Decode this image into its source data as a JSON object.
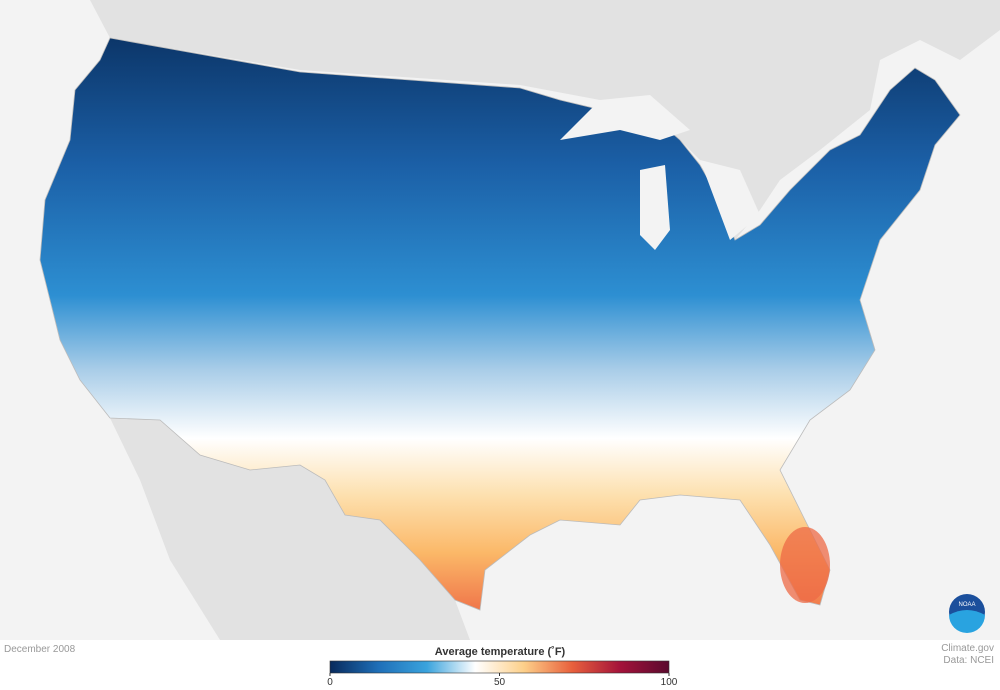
{
  "footer": {
    "date": "December 2008",
    "site": "Climate.gov",
    "source": "Data: NCEI"
  },
  "logo": "NOAA",
  "legend": {
    "title": "Average temperature (˚F)",
    "range": [
      0,
      100
    ],
    "ticks": [
      0,
      50,
      100
    ],
    "colors": [
      "#082a5c",
      "#1f6fb8",
      "#3aa3dd",
      "#ffffff",
      "#fdd08a",
      "#e8603c",
      "#a3123a",
      "#5a0a2e"
    ]
  }
}
